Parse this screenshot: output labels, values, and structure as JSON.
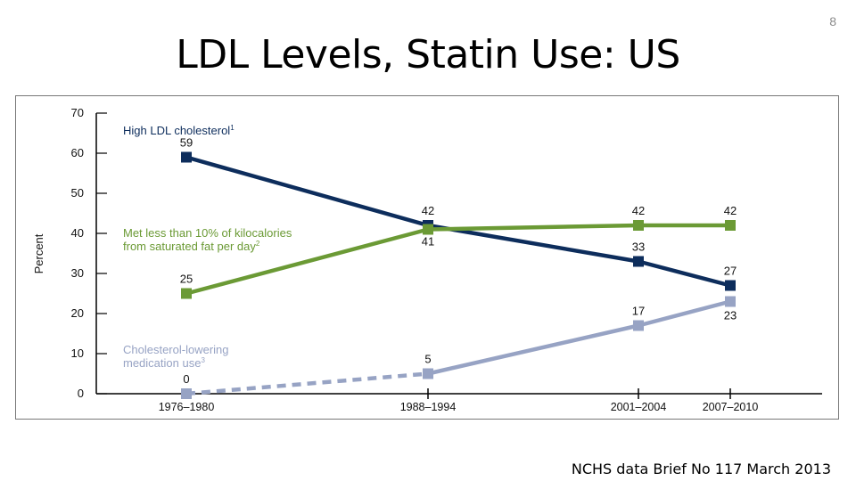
{
  "slide": {
    "title": "LDL Levels, Statin Use: US",
    "number": "8",
    "source": "NCHS data Brief No 117 March 2013"
  },
  "chart_data": {
    "type": "line",
    "title": "",
    "xlabel": "",
    "ylabel": "Percent",
    "ylim": [
      0,
      70
    ],
    "yticks": [
      "0",
      "10",
      "20",
      "30",
      "40",
      "50",
      "60",
      "70"
    ],
    "categories": [
      "1976–1980",
      "1988–1994",
      "2001–2004",
      "2007–2010"
    ],
    "grid": false,
    "series": [
      {
        "name": "High LDL cholesterol",
        "sup": "1",
        "color": "#0d2d5c",
        "values": [
          59,
          42,
          33,
          27
        ],
        "labels": [
          "59",
          "42",
          "33",
          "27"
        ],
        "dashed_first_segment": false
      },
      {
        "name": "Met less than 10% of kilocalories",
        "name2": "from saturated fat per day",
        "sup": "2",
        "color": "#6b9a35",
        "values": [
          25,
          41,
          42,
          42
        ],
        "labels": [
          "25",
          "41",
          "42",
          "42"
        ],
        "dashed_first_segment": false
      },
      {
        "name": "Cholesterol-lowering",
        "name2": "medication use",
        "sup": "3",
        "color": "#97a3c4",
        "values": [
          0,
          5,
          17,
          23
        ],
        "labels": [
          "0",
          "5",
          "17",
          "23"
        ],
        "dashed_first_segment": true
      }
    ]
  }
}
